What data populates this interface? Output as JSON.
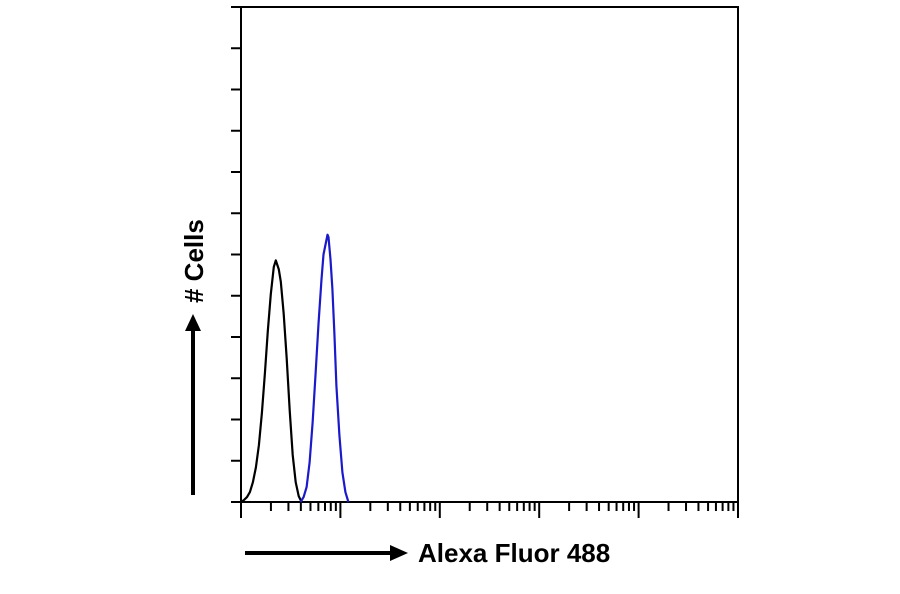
{
  "chart_data": {
    "type": "line",
    "title": "",
    "xlabel": "Alexa Fluor 488",
    "ylabel": "# Cells",
    "x_scale": "log",
    "x_decades": 5,
    "y_tick_count": 12,
    "grid": false,
    "legend": "none",
    "series": [
      {
        "color": "#000000",
        "points": [
          [
            0.0,
            0.0
          ],
          [
            0.03,
            0.004
          ],
          [
            0.06,
            0.01
          ],
          [
            0.09,
            0.02
          ],
          [
            0.12,
            0.04
          ],
          [
            0.15,
            0.07
          ],
          [
            0.18,
            0.115
          ],
          [
            0.21,
            0.18
          ],
          [
            0.24,
            0.26
          ],
          [
            0.27,
            0.345
          ],
          [
            0.3,
            0.42
          ],
          [
            0.33,
            0.475
          ],
          [
            0.35,
            0.488
          ],
          [
            0.36,
            0.482
          ],
          [
            0.38,
            0.47
          ],
          [
            0.4,
            0.445
          ],
          [
            0.43,
            0.38
          ],
          [
            0.46,
            0.29
          ],
          [
            0.49,
            0.185
          ],
          [
            0.52,
            0.095
          ],
          [
            0.55,
            0.04
          ],
          [
            0.58,
            0.012
          ],
          [
            0.61,
            0.0
          ]
        ]
      },
      {
        "color": "#1a1acc",
        "points": [
          [
            0.6,
            0.0
          ],
          [
            0.63,
            0.01
          ],
          [
            0.66,
            0.03
          ],
          [
            0.69,
            0.08
          ],
          [
            0.72,
            0.16
          ],
          [
            0.75,
            0.26
          ],
          [
            0.78,
            0.36
          ],
          [
            0.81,
            0.45
          ],
          [
            0.83,
            0.5
          ],
          [
            0.85,
            0.52
          ],
          [
            0.87,
            0.54
          ],
          [
            0.88,
            0.535
          ],
          [
            0.9,
            0.49
          ],
          [
            0.92,
            0.43
          ],
          [
            0.94,
            0.34
          ],
          [
            0.96,
            0.235
          ],
          [
            0.99,
            0.135
          ],
          [
            1.02,
            0.06
          ],
          [
            1.05,
            0.02
          ],
          [
            1.08,
            0.0
          ]
        ]
      }
    ]
  }
}
